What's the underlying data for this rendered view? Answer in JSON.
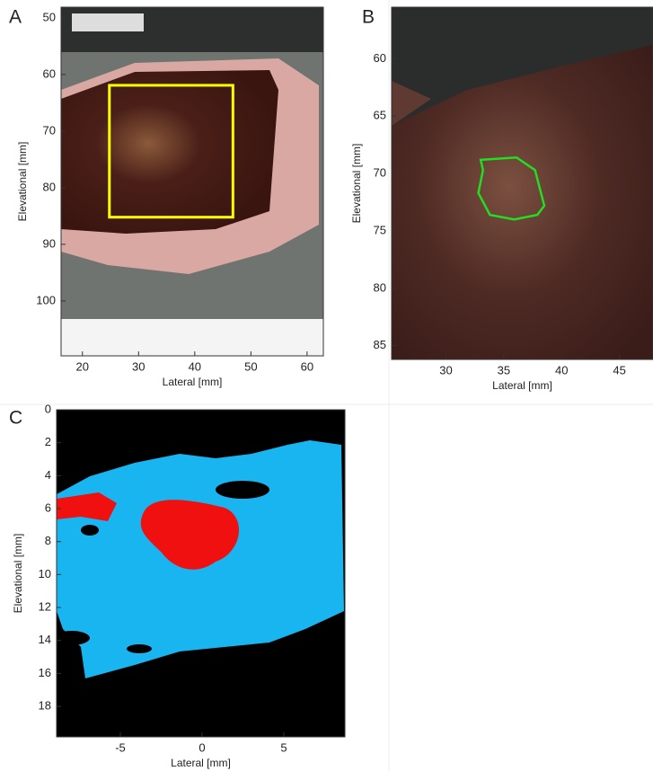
{
  "chart_data": [
    {
      "type": "image",
      "panel": "A",
      "xlabel": "Lateral [mm]",
      "ylabel": "Elevational [mm]",
      "xlim": [
        16.2,
        62.9
      ],
      "ylim": [
        48.1,
        109.7
      ],
      "xticks": [
        20,
        30,
        40,
        50,
        60
      ],
      "yticks": [
        50,
        60,
        70,
        80,
        90,
        100
      ],
      "roi": {
        "x": [
          24.8,
          46.8
        ],
        "y": [
          61.9,
          85.2
        ],
        "color": "#ffff00"
      }
    },
    {
      "type": "image",
      "panel": "B",
      "xlabel": "Lateral [mm]",
      "ylabel": "Elevational [mm]",
      "xlim": [
        25.3,
        47.9
      ],
      "ylim": [
        55.5,
        86.2
      ],
      "xticks": [
        30,
        35,
        40,
        45
      ],
      "yticks": [
        60,
        65,
        70,
        75,
        80,
        85
      ],
      "contour": {
        "x": [
          33.0,
          36.1,
          37.7,
          38.5,
          37.9,
          35.9,
          33.8,
          32.8,
          33.2
        ],
        "y": [
          68.8,
          68.6,
          69.7,
          72.8,
          73.6,
          74.0,
          73.6,
          71.7,
          69.7
        ],
        "color": "#22dd22"
      }
    },
    {
      "type": "image",
      "panel": "C",
      "xlabel": "Lateral [mm]",
      "ylabel": "Elevational [mm]",
      "xlim": [
        -8.9,
        8.74
      ],
      "ylim": [
        0,
        19.85
      ],
      "xticks": [
        -5,
        0,
        5
      ],
      "yticks": [
        0,
        2,
        4,
        6,
        8,
        10,
        12,
        14,
        16,
        18
      ]
    }
  ]
}
